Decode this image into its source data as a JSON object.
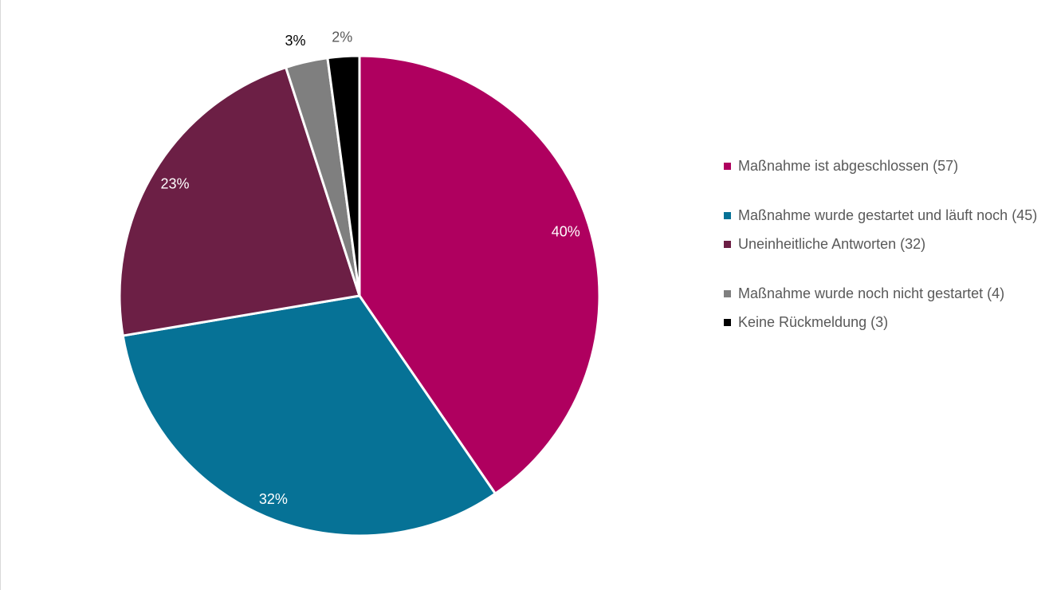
{
  "chart_data": {
    "type": "pie",
    "slices": [
      {
        "label": "Maßnahme ist abgeschlossen (57)",
        "value": 57,
        "percent_label": "40%",
        "color": "#AF005F",
        "label_color": "#ffffff"
      },
      {
        "label": "Maßnahme wurde gestartet und läuft noch (45)",
        "value": 45,
        "percent_label": "32%",
        "color": "#067296",
        "label_color": "#ffffff"
      },
      {
        "label": "Uneinheitliche Antworten (32)",
        "value": 32,
        "percent_label": "23%",
        "color": "#6C1F45",
        "label_color": "#ffffff"
      },
      {
        "label": "Maßnahme wurde noch nicht gestartet (4)",
        "value": 4,
        "percent_label": "3%",
        "color": "#7F7F7F",
        "label_color": "#000000"
      },
      {
        "label": "Keine Rückmeldung (3)",
        "value": 3,
        "percent_label": "2%",
        "color": "#000000",
        "label_color": "#595959"
      }
    ],
    "start": "12 o'clock",
    "direction": "clockwise",
    "legend_position": "right"
  }
}
